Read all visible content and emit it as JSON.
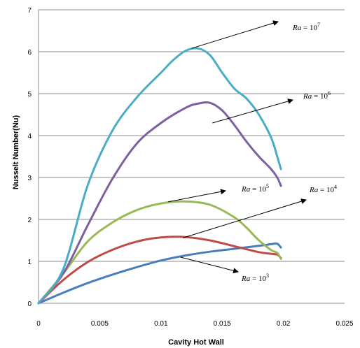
{
  "chart_data": {
    "type": "line",
    "title": "",
    "xlabel": "Cavity Hot Wall",
    "ylabel": "Nusselt Number(Nu)",
    "xlim": [
      0,
      0.025
    ],
    "ylim": [
      0,
      7
    ],
    "xticks": [
      "0",
      "0.005",
      "0.01",
      "0.015",
      "0.02",
      "0.025"
    ],
    "yticks": [
      "0",
      "1",
      "2",
      "3",
      "4",
      "5",
      "6",
      "7"
    ],
    "grid": "horizontal",
    "series": [
      {
        "label": "Ra = 10^3",
        "color": "#4a7ebb",
        "x": [
          0,
          0.002,
          0.004,
          0.006,
          0.008,
          0.01,
          0.012,
          0.014,
          0.016,
          0.018,
          0.019,
          0.0195,
          0.0198
        ],
        "y": [
          0,
          0.25,
          0.48,
          0.68,
          0.86,
          1.02,
          1.14,
          1.23,
          1.3,
          1.37,
          1.41,
          1.42,
          1.33
        ]
      },
      {
        "label": "Ra = 10^4",
        "color": "#be4b48",
        "x": [
          0,
          0.002,
          0.004,
          0.006,
          0.008,
          0.01,
          0.012,
          0.014,
          0.016,
          0.018,
          0.019,
          0.0195,
          0.0198
        ],
        "y": [
          0,
          0.55,
          0.98,
          1.27,
          1.47,
          1.57,
          1.58,
          1.5,
          1.36,
          1.22,
          1.18,
          1.16,
          1.08
        ]
      },
      {
        "label": "Ra = 10^5",
        "color": "#98b954",
        "x": [
          0,
          0.002,
          0.004,
          0.006,
          0.008,
          0.01,
          0.012,
          0.014,
          0.016,
          0.017,
          0.018,
          0.019,
          0.0195,
          0.0198
        ],
        "y": [
          0,
          0.7,
          1.47,
          1.92,
          2.22,
          2.38,
          2.43,
          2.35,
          2.05,
          1.8,
          1.5,
          1.27,
          1.2,
          1.06
        ]
      },
      {
        "label": "Ra = 10^6",
        "color": "#7d60a0",
        "x": [
          0,
          0.002,
          0.004,
          0.006,
          0.008,
          0.01,
          0.012,
          0.013,
          0.014,
          0.015,
          0.016,
          0.017,
          0.018,
          0.019,
          0.0195,
          0.0198
        ],
        "y": [
          0,
          0.7,
          1.85,
          2.95,
          3.8,
          4.3,
          4.66,
          4.76,
          4.78,
          4.6,
          4.25,
          3.85,
          3.5,
          3.2,
          3.0,
          2.8
        ]
      },
      {
        "label": "Ra = 10^7",
        "color": "#4bacc6",
        "x": [
          0,
          0.002,
          0.004,
          0.006,
          0.008,
          0.01,
          0.011,
          0.012,
          0.013,
          0.014,
          0.015,
          0.016,
          0.017,
          0.018,
          0.019,
          0.0195,
          0.0198
        ],
        "y": [
          0,
          0.8,
          2.8,
          4.1,
          4.9,
          5.5,
          5.8,
          6.02,
          6.08,
          5.92,
          5.5,
          5.12,
          4.88,
          4.5,
          3.95,
          3.5,
          3.2
        ]
      }
    ],
    "annotations": [
      {
        "base": "Ra",
        "eq": " = 10",
        "exp": "7"
      },
      {
        "base": "Ra",
        "eq": " = 10",
        "exp": "6"
      },
      {
        "base": "Ra",
        "eq": " = 10",
        "exp": "5"
      },
      {
        "base": "Ra",
        "eq": " = 10",
        "exp": "4"
      },
      {
        "base": "Ra",
        "eq": " = 10",
        "exp": "3"
      }
    ]
  }
}
